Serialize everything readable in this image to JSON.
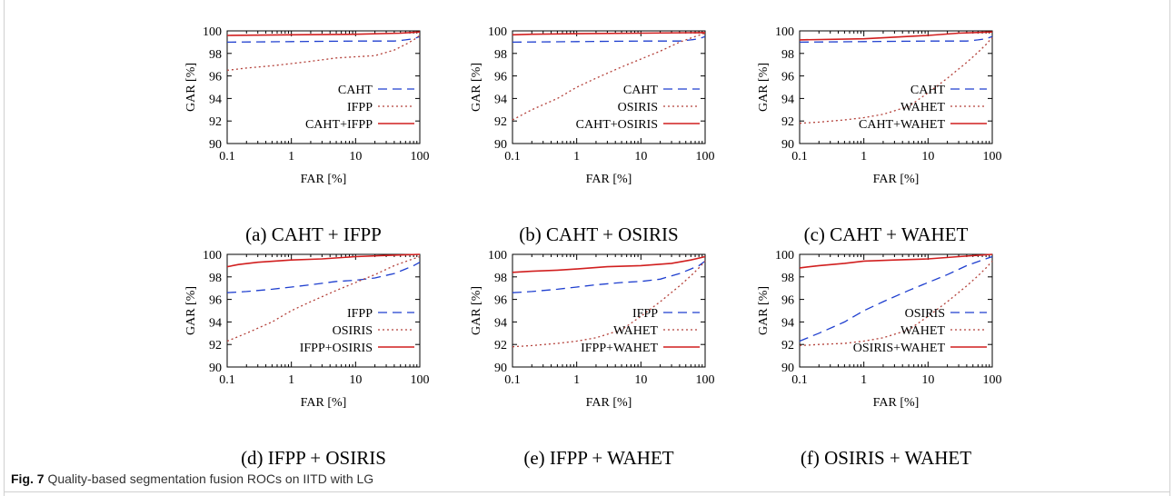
{
  "figure": {
    "caption_label": "Fig. 7",
    "caption_text": "Quality-based segmentation fusion ROCs on IITD with LG"
  },
  "style": {
    "series_colors": {
      "single_a": "#1f3fcf",
      "single_b": "#b4413a",
      "fusion": "#d11f1f"
    },
    "series_dash": [
      "dashed",
      "dotted",
      "solid"
    ]
  },
  "chart_data": [
    {
      "type": "line",
      "caption": "(a) CAHT + IFPP",
      "xlabel": "FAR [%]",
      "ylabel": "GAR [%]",
      "xscale": "log",
      "xlim": [
        0.1,
        100
      ],
      "ylim": [
        90,
        100
      ],
      "xticks": [
        "0.1",
        "1",
        "10",
        "100"
      ],
      "yticks": [
        "90",
        "92",
        "94",
        "96",
        "98",
        "100"
      ],
      "grid": false,
      "legend_position": "bottom-right",
      "series": [
        {
          "name": "CAHT",
          "x": [
            0.1,
            1,
            10,
            40,
            60,
            80,
            100
          ],
          "y": [
            99.0,
            99.05,
            99.1,
            99.1,
            99.2,
            99.3,
            99.5
          ]
        },
        {
          "name": "IFPP",
          "x": [
            0.1,
            0.2,
            0.5,
            1,
            2,
            5,
            10,
            20,
            40,
            60,
            80,
            100
          ],
          "y": [
            96.5,
            96.7,
            96.9,
            97.1,
            97.3,
            97.6,
            97.7,
            97.8,
            98.3,
            98.8,
            99.2,
            99.6
          ]
        },
        {
          "name": "CAHT+IFPP",
          "x": [
            0.1,
            1,
            10,
            50,
            100
          ],
          "y": [
            99.6,
            99.65,
            99.7,
            99.8,
            99.9
          ]
        }
      ]
    },
    {
      "type": "line",
      "caption": "(b) CAHT + OSIRIS",
      "xlabel": "FAR [%]",
      "ylabel": "GAR [%]",
      "xscale": "log",
      "xlim": [
        0.1,
        100
      ],
      "ylim": [
        90,
        100
      ],
      "xticks": [
        "0.1",
        "1",
        "10",
        "100"
      ],
      "yticks": [
        "90",
        "92",
        "94",
        "96",
        "98",
        "100"
      ],
      "grid": false,
      "legend_position": "bottom-right",
      "series": [
        {
          "name": "CAHT",
          "x": [
            0.1,
            1,
            10,
            40,
            60,
            80,
            100
          ],
          "y": [
            99.0,
            99.05,
            99.1,
            99.1,
            99.2,
            99.3,
            99.5
          ]
        },
        {
          "name": "OSIRIS",
          "x": [
            0.1,
            0.2,
            0.5,
            1,
            2,
            5,
            10,
            20,
            40,
            70,
            100
          ],
          "y": [
            92.1,
            93.0,
            94.0,
            95.0,
            95.8,
            96.8,
            97.5,
            98.2,
            99.0,
            99.5,
            99.8
          ]
        },
        {
          "name": "CAHT+OSIRIS",
          "x": [
            0.1,
            0.2,
            1,
            10,
            100
          ],
          "y": [
            99.65,
            99.7,
            99.75,
            99.8,
            99.85
          ]
        }
      ]
    },
    {
      "type": "line",
      "caption": "(c) CAHT + WAHET",
      "xlabel": "FAR [%]",
      "ylabel": "GAR [%]",
      "xscale": "log",
      "xlim": [
        0.1,
        100
      ],
      "ylim": [
        90,
        100
      ],
      "xticks": [
        "0.1",
        "1",
        "10",
        "100"
      ],
      "yticks": [
        "90",
        "92",
        "94",
        "96",
        "98",
        "100"
      ],
      "grid": false,
      "legend_position": "bottom-right",
      "series": [
        {
          "name": "CAHT",
          "x": [
            0.1,
            1,
            10,
            40,
            60,
            80,
            100
          ],
          "y": [
            99.0,
            99.05,
            99.1,
            99.1,
            99.2,
            99.3,
            99.5
          ]
        },
        {
          "name": "WAHET",
          "x": [
            0.1,
            0.2,
            0.5,
            1,
            2,
            5,
            10,
            20,
            40,
            60,
            80,
            100
          ],
          "y": [
            91.8,
            91.9,
            92.1,
            92.3,
            92.6,
            93.3,
            94.5,
            95.8,
            97.2,
            98.1,
            98.8,
            99.4
          ]
        },
        {
          "name": "CAHT+WAHET",
          "x": [
            0.1,
            1,
            10,
            30,
            100
          ],
          "y": [
            99.2,
            99.3,
            99.6,
            99.8,
            99.9
          ]
        }
      ]
    },
    {
      "type": "line",
      "caption": "(d) IFPP + OSIRIS",
      "xlabel": "FAR [%]",
      "ylabel": "GAR [%]",
      "xscale": "log",
      "xlim": [
        0.1,
        100
      ],
      "ylim": [
        90,
        100
      ],
      "xticks": [
        "0.1",
        "1",
        "10",
        "100"
      ],
      "yticks": [
        "90",
        "92",
        "94",
        "96",
        "98",
        "100"
      ],
      "grid": false,
      "legend_position": "bottom-right",
      "series": [
        {
          "name": "IFPP",
          "x": [
            0.1,
            0.2,
            0.5,
            1,
            2,
            5,
            10,
            20,
            40,
            60,
            80,
            100
          ],
          "y": [
            96.6,
            96.7,
            96.9,
            97.1,
            97.3,
            97.6,
            97.7,
            97.9,
            98.3,
            98.7,
            99.0,
            99.3
          ]
        },
        {
          "name": "OSIRIS",
          "x": [
            0.1,
            0.2,
            0.5,
            1,
            2,
            5,
            10,
            20,
            40,
            70,
            100
          ],
          "y": [
            92.3,
            93.0,
            94.0,
            95.0,
            95.8,
            96.8,
            97.5,
            98.2,
            99.0,
            99.5,
            99.8
          ]
        },
        {
          "name": "IFPP+OSIRIS",
          "x": [
            0.1,
            0.15,
            0.3,
            1,
            3,
            10,
            30,
            100
          ],
          "y": [
            98.9,
            99.1,
            99.3,
            99.5,
            99.6,
            99.8,
            99.9,
            100.0
          ]
        }
      ]
    },
    {
      "type": "line",
      "caption": "(e) IFPP + WAHET",
      "xlabel": "FAR [%]",
      "ylabel": "GAR [%]",
      "xscale": "log",
      "xlim": [
        0.1,
        100
      ],
      "ylim": [
        90,
        100
      ],
      "xticks": [
        "0.1",
        "1",
        "10",
        "100"
      ],
      "yticks": [
        "90",
        "92",
        "94",
        "96",
        "98",
        "100"
      ],
      "grid": false,
      "legend_position": "bottom-right",
      "series": [
        {
          "name": "IFPP",
          "x": [
            0.1,
            0.2,
            0.5,
            1,
            2,
            5,
            10,
            20,
            40,
            60,
            80,
            100
          ],
          "y": [
            96.6,
            96.7,
            96.9,
            97.1,
            97.3,
            97.5,
            97.6,
            97.8,
            98.3,
            98.7,
            99.0,
            99.4
          ]
        },
        {
          "name": "WAHET",
          "x": [
            0.1,
            0.2,
            0.5,
            1,
            2,
            5,
            10,
            20,
            40,
            60,
            80,
            100
          ],
          "y": [
            91.8,
            91.9,
            92.1,
            92.3,
            92.6,
            93.3,
            94.5,
            95.8,
            97.2,
            98.1,
            98.8,
            99.4
          ]
        },
        {
          "name": "IFPP+WAHET",
          "x": [
            0.1,
            0.2,
            0.5,
            1,
            3,
            10,
            30,
            60,
            100
          ],
          "y": [
            98.4,
            98.5,
            98.6,
            98.7,
            98.9,
            99.0,
            99.2,
            99.5,
            99.8
          ]
        }
      ]
    },
    {
      "type": "line",
      "caption": "(f) OSIRIS + WAHET",
      "xlabel": "FAR [%]",
      "ylabel": "GAR [%]",
      "xscale": "log",
      "xlim": [
        0.1,
        100
      ],
      "ylim": [
        90,
        100
      ],
      "xticks": [
        "0.1",
        "1",
        "10",
        "100"
      ],
      "yticks": [
        "90",
        "92",
        "94",
        "96",
        "98",
        "100"
      ],
      "grid": false,
      "legend_position": "bottom-right",
      "series": [
        {
          "name": "OSIRIS",
          "x": [
            0.1,
            0.2,
            0.5,
            1,
            2,
            5,
            10,
            20,
            40,
            70,
            100
          ],
          "y": [
            92.3,
            93.0,
            94.0,
            95.0,
            95.8,
            96.8,
            97.5,
            98.2,
            99.0,
            99.5,
            99.8
          ]
        },
        {
          "name": "WAHET",
          "x": [
            0.1,
            0.2,
            0.5,
            1,
            2,
            5,
            10,
            20,
            40,
            60,
            80,
            100
          ],
          "y": [
            91.9,
            92.0,
            92.1,
            92.3,
            92.6,
            93.3,
            94.5,
            95.8,
            97.2,
            98.1,
            98.8,
            99.4
          ]
        },
        {
          "name": "OSIRIS+WAHET",
          "x": [
            0.1,
            0.2,
            0.5,
            1,
            3,
            10,
            30,
            100
          ],
          "y": [
            98.8,
            99.0,
            99.2,
            99.4,
            99.5,
            99.6,
            99.8,
            100.0
          ]
        }
      ]
    }
  ]
}
